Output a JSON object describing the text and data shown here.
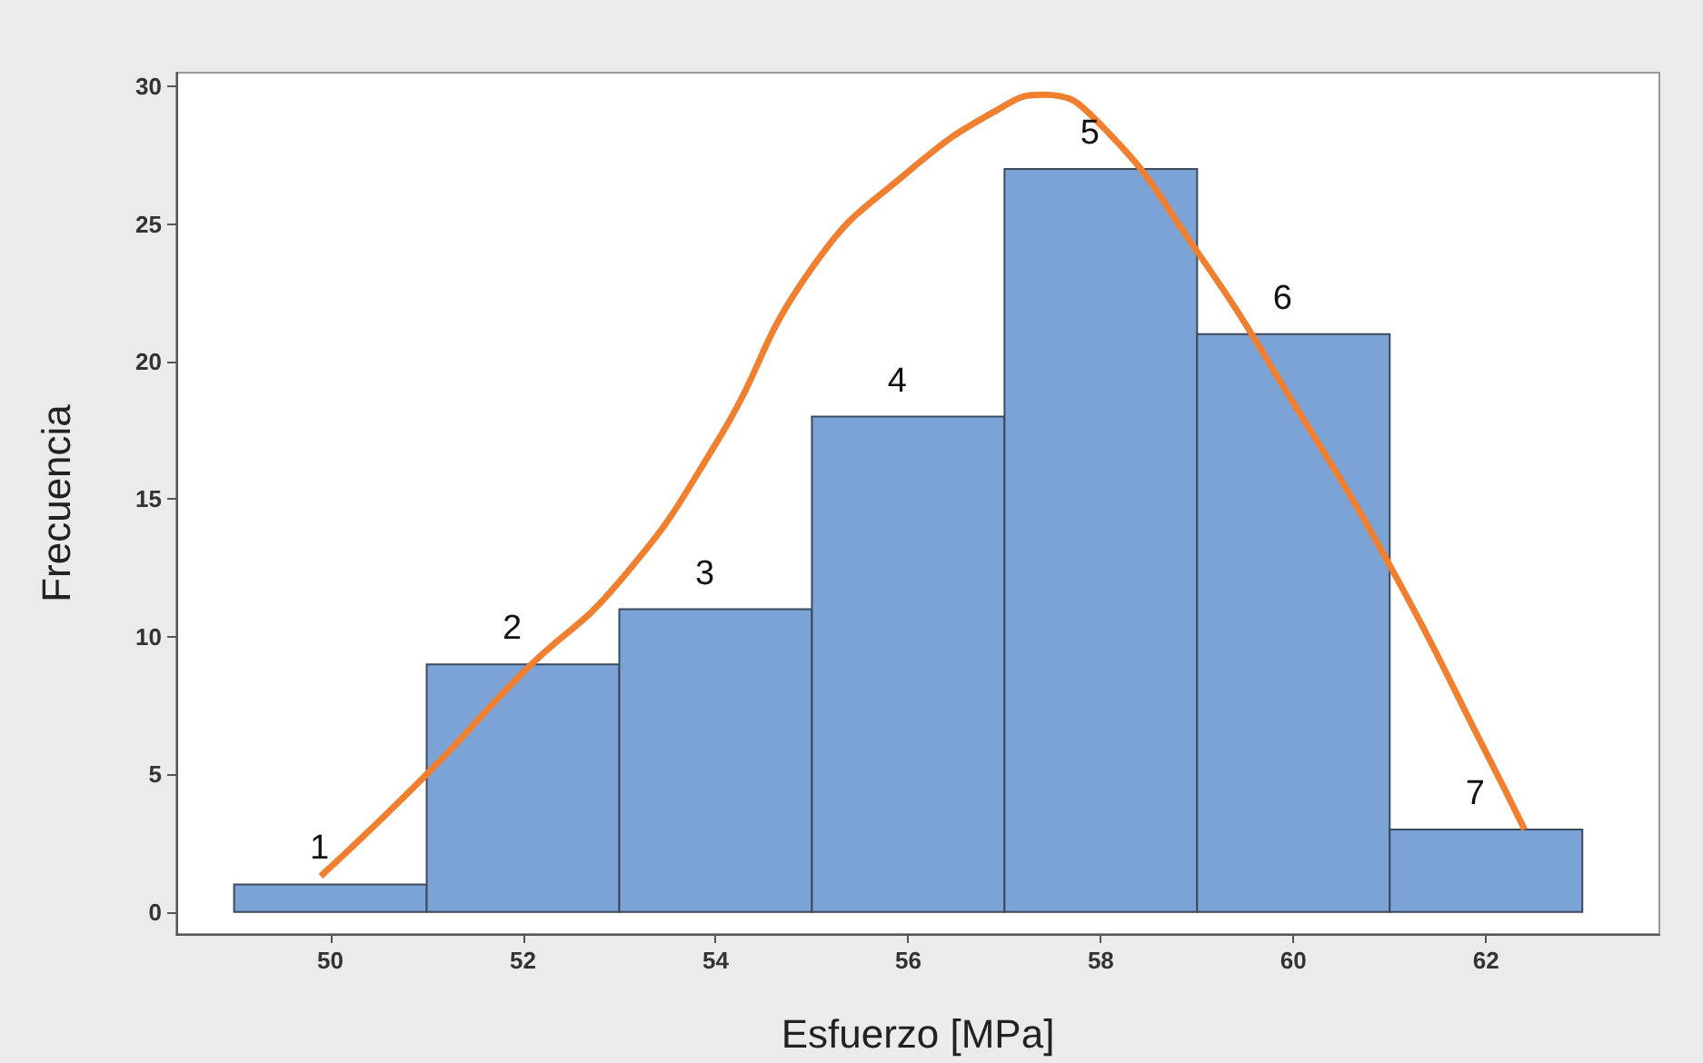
{
  "chart_data": {
    "type": "histogram",
    "xlabel": "Esfuerzo [MPa]",
    "ylabel": "Frecuencia",
    "bins": [
      49,
      51,
      53,
      55,
      57,
      59,
      61,
      63
    ],
    "values": [
      1,
      9,
      11,
      18,
      27,
      21,
      3
    ],
    "color": "#7ba3d6",
    "series": [
      {
        "type": "line",
        "color": "#f07f2f",
        "x": [
          49.9,
          51,
          52,
          53,
          54,
          55,
          56,
          57,
          57.4,
          58,
          59,
          60,
          61,
          62,
          62.4
        ],
        "values": [
          1.3,
          5,
          8.7,
          12,
          17,
          23.4,
          26.9,
          29.3,
          29.7,
          28.6,
          24,
          18.5,
          12.6,
          5.8,
          3
        ]
      }
    ],
    "annotations": [
      "1",
      "2",
      "3",
      "4",
      "5",
      "6",
      "7"
    ],
    "xlim": [
      48.4,
      63.8
    ],
    "xticks": [
      50,
      52,
      54,
      56,
      58,
      60,
      62
    ],
    "ylim": [
      -0.8,
      30.5
    ],
    "yticks": [
      0,
      5,
      10,
      15,
      20,
      25,
      30
    ],
    "grid": false,
    "legend": false,
    "marker": "none",
    "line_style": "solid"
  }
}
